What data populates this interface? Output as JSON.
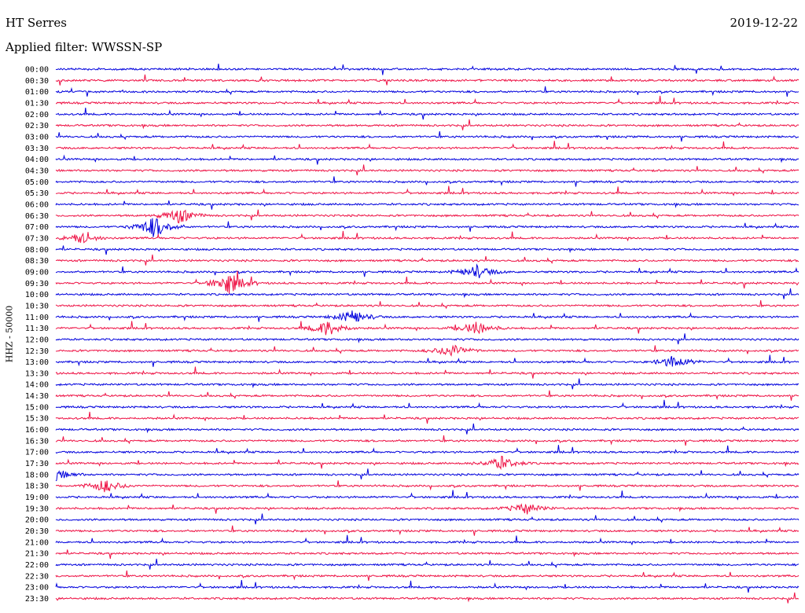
{
  "header": {
    "station": "HT Serres",
    "date": "2019-12-22",
    "filter_label": "Applied filter: WWSSN-SP",
    "channel_label": "HHZ - 50000"
  },
  "chart_data": {
    "type": "line",
    "title": "HT Serres",
    "subtitle": "Applied filter: WWSSN-SP",
    "ylabel": "HHZ - 50000",
    "xlabel": "",
    "grid": false,
    "rows": [
      "00:00",
      "00:30",
      "01:00",
      "01:30",
      "02:00",
      "02:30",
      "03:00",
      "03:30",
      "04:00",
      "04:30",
      "05:00",
      "05:30",
      "06:00",
      "06:30",
      "07:00",
      "07:30",
      "08:00",
      "08:30",
      "09:00",
      "09:30",
      "10:00",
      "10:30",
      "11:00",
      "11:30",
      "12:00",
      "12:30",
      "13:00",
      "13:30",
      "14:00",
      "14:30",
      "15:00",
      "15:30",
      "16:00",
      "16:30",
      "17:00",
      "17:30",
      "18:00",
      "18:30",
      "19:00",
      "19:30",
      "20:00",
      "20:30",
      "21:00",
      "21:30",
      "22:00",
      "22:30",
      "23:00",
      "23:30"
    ],
    "row_minutes": 30,
    "series_colors": [
      "#0000dd",
      "#ee1144"
    ],
    "events": [
      {
        "row": "06:30",
        "minute": 5,
        "amplitude": 0.7
      },
      {
        "row": "07:00",
        "minute": 4,
        "amplitude": 1.0
      },
      {
        "row": "07:30",
        "minute": 1,
        "amplitude": 0.5
      },
      {
        "row": "09:00",
        "minute": 17,
        "amplitude": 0.6
      },
      {
        "row": "09:30",
        "minute": 7,
        "amplitude": 1.0
      },
      {
        "row": "11:00",
        "minute": 12,
        "amplitude": 0.6
      },
      {
        "row": "11:30",
        "minute": 11,
        "amplitude": 0.7
      },
      {
        "row": "11:30",
        "minute": 17,
        "amplitude": 0.6
      },
      {
        "row": "12:30",
        "minute": 16,
        "amplitude": 0.6
      },
      {
        "row": "13:00",
        "minute": 25,
        "amplitude": 0.6
      },
      {
        "row": "17:30",
        "minute": 18,
        "amplitude": 0.6
      },
      {
        "row": "18:00",
        "minute": 0,
        "amplitude": 0.5
      },
      {
        "row": "18:30",
        "minute": 2,
        "amplitude": 0.6
      },
      {
        "row": "19:30",
        "minute": 19,
        "amplitude": 0.5
      }
    ]
  }
}
